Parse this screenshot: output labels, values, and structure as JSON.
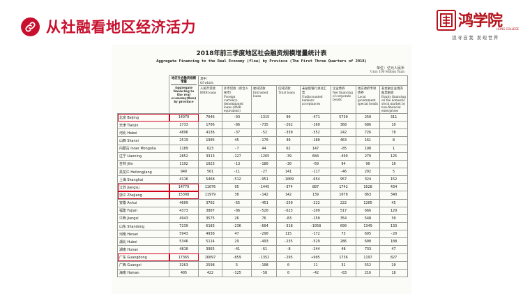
{
  "slide": {
    "title": "从社融看地区经济活力",
    "icon": "link-icon",
    "accent_color": "#c8102e"
  },
  "logo": {
    "seal_text": "渴",
    "name": "鸿学院",
    "sub": "HONG COLLEGE",
    "slogan": "追寻自我  发现世界"
  },
  "document": {
    "title": "2018年前三季度地区社会融资规模增量统计表",
    "subtitle": "Aggregate Financing to the Real Economy (flow) by Province (The First Three Quarters of 2018)",
    "unit_cn": "单位：亿元人民币",
    "unit_en": "Unit: 100 Million Yuan",
    "header": {
      "main_cn": "地区社会融资规模增量",
      "main_en": "Aggregate financing to the real economy(flow) by province",
      "of_which_cn": "其中：",
      "of_which_en": "Of which",
      "columns": [
        {
          "cn": "人民币贷款",
          "en": "RMB loans"
        },
        {
          "cn": "外币贷款（折合人民币）",
          "en": "Foreign currency-denominated loans (RMB equivalent)"
        },
        {
          "cn": "委托贷款",
          "en": "Entrusted loans"
        },
        {
          "cn": "信托贷款",
          "en": "Trust loans"
        },
        {
          "cn": "未贴现银行承兑汇票",
          "en": "Undiscounted bankers' acceptances"
        },
        {
          "cn": "企业债券",
          "en": "Net financing of corporate bonds"
        },
        {
          "cn": "地方政府专项债券",
          "en": "Local government special bonds"
        },
        {
          "cn": "非金融企业境内股票融资",
          "en": "Equity financing on the domestic stock market by non-financial enterprises"
        }
      ]
    },
    "rows": [
      {
        "region": "北京 Beijing",
        "total": "14979",
        "v": [
          "7046",
          "-93",
          "-1315",
          "90",
          "-471",
          "5730",
          "250",
          "311"
        ],
        "highlight": true
      },
      {
        "region": "天津 Tianjin",
        "total": "1733",
        "v": [
          "1706",
          "-86",
          "-735",
          "-262",
          "-160",
          "368",
          "686",
          "10"
        ],
        "highlight": false
      },
      {
        "region": "河北 Hebei",
        "total": "4896",
        "v": [
          "4136",
          "-37",
          "-52",
          "-330",
          "-352",
          "242",
          "726",
          "78"
        ],
        "highlight": false
      },
      {
        "region": "山西 Shanxi",
        "total": "2519",
        "v": [
          "1905",
          "45",
          "-170",
          "40",
          "-180",
          "463",
          "161",
          "8"
        ],
        "highlight": false
      },
      {
        "region": "内蒙古 Inner Mongolia",
        "total": "1189",
        "v": [
          "623",
          "-7",
          "44",
          "62",
          "147",
          "-85",
          "198",
          "1"
        ],
        "highlight": false
      },
      {
        "region": "辽宁 Liaoning",
        "total": "2852",
        "v": [
          "3313",
          "-127",
          "-1265",
          "-39",
          "684",
          "-499",
          "270",
          "125"
        ],
        "highlight": false
      },
      {
        "region": "吉林 Jilin",
        "total": "1192",
        "v": [
          "1023",
          "-13",
          "-180",
          "-30",
          "-69",
          "94",
          "90",
          "16"
        ],
        "highlight": false
      },
      {
        "region": "黑龙江 Heilongjiang",
        "total": "940",
        "v": [
          "561",
          "-11",
          "-27",
          "141",
          "-117",
          "-46",
          "292",
          "5"
        ],
        "highlight": false
      },
      {
        "region": "上海 Shanghai",
        "total": "4116",
        "v": [
          "5468",
          "-512",
          "-951",
          "-1009",
          "-654",
          "957",
          "324",
          "152"
        ],
        "highlight": false
      },
      {
        "region": "江苏 Jiangsu",
        "total": "14779",
        "v": [
          "11076",
          "95",
          "-1445",
          "-374",
          "887",
          "1742",
          "1628",
          "434"
        ],
        "highlight": true
      },
      {
        "region": "浙江 Zhejiang",
        "total": "15308",
        "v": [
          "11979",
          "38",
          "-142",
          "142",
          "139",
          "1078",
          "863",
          "340"
        ],
        "highlight": true
      },
      {
        "region": "安徽 Anhui",
        "total": "4609",
        "v": [
          "3702",
          "-65",
          "-451",
          "-250",
          "-222",
          "222",
          "1205",
          "45"
        ],
        "highlight": false
      },
      {
        "region": "福建 Fujian",
        "total": "4373",
        "v": [
          "3807",
          "-86",
          "-520",
          "-623",
          "-209",
          "517",
          "666",
          "129"
        ],
        "highlight": false
      },
      {
        "region": "江西 Jiangxi",
        "total": "4943",
        "v": [
          "3575",
          "26",
          "76",
          "-83",
          "-150",
          "354",
          "548",
          "30"
        ],
        "highlight": false
      },
      {
        "region": "山东 Shandong",
        "total": "7239",
        "v": [
          "6183",
          "-236",
          "-604",
          "-318",
          "-1058",
          "690",
          "1349",
          "133"
        ],
        "highlight": false
      },
      {
        "region": "河南 Henan",
        "total": "5943",
        "v": [
          "4938",
          "47",
          "-290",
          "115",
          "-172",
          "73",
          "695",
          "-20"
        ],
        "highlight": false
      },
      {
        "region": "湖北 Hubei",
        "total": "5346",
        "v": [
          "5114",
          "29",
          "-493",
          "-235",
          "-529",
          "286",
          "600",
          "108"
        ],
        "highlight": false
      },
      {
        "region": "湖南 Hunan",
        "total": "4810",
        "v": [
          "3965",
          "-41",
          "-61",
          "-8",
          "-244",
          "48",
          "733",
          "47"
        ],
        "highlight": false
      },
      {
        "region": "广东 Guangdong",
        "total": "17365",
        "v": [
          "16097",
          "-859",
          "-1352",
          "-295",
          "+905",
          "1736",
          "1197",
          "827"
        ],
        "highlight": true
      },
      {
        "region": "广西 Guangxi",
        "total": "3263",
        "v": [
          "2598",
          "5",
          "-108",
          "0",
          "11",
          "31",
          "552",
          "20"
        ],
        "highlight": false
      },
      {
        "region": "海南 Hainan",
        "total": "405",
        "v": [
          "422",
          "-125",
          "-58",
          "0",
          "-42",
          "-83",
          "216",
          "18"
        ],
        "highlight": false
      }
    ]
  }
}
